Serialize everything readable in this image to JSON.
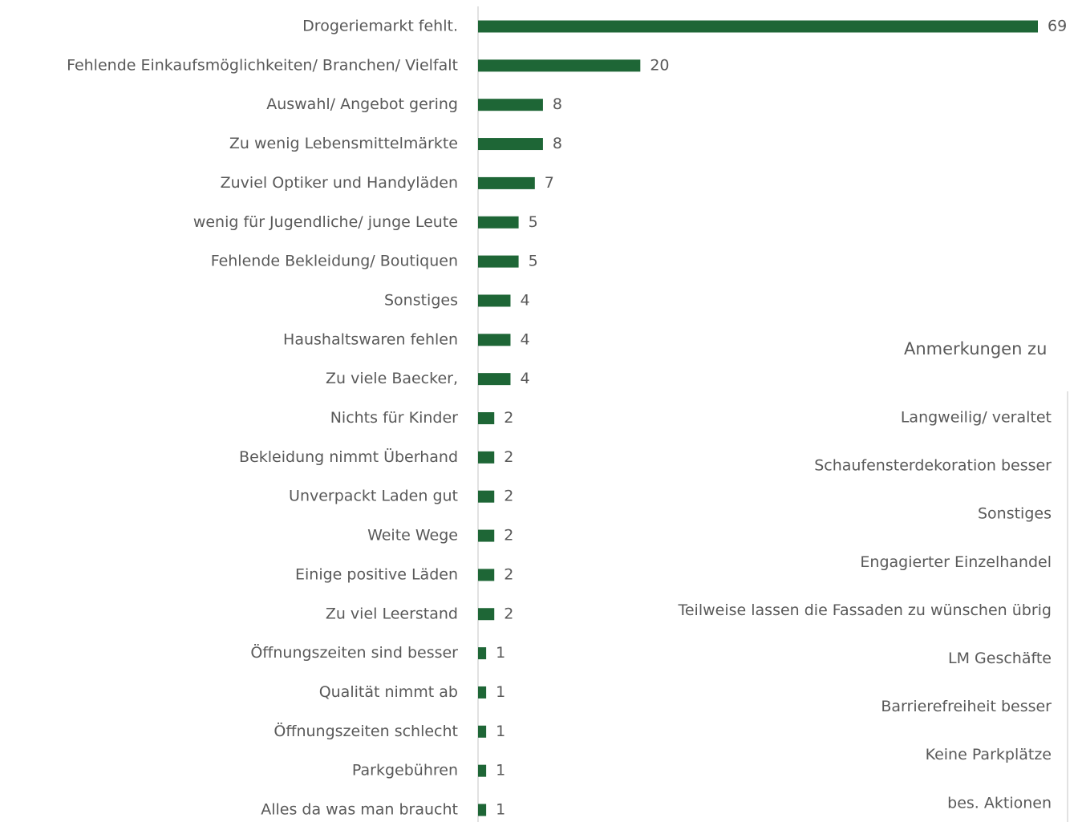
{
  "chart_data": [
    {
      "type": "barh",
      "color": "#1e6636",
      "categories": [
        "Drogeriemarkt fehlt.",
        "Fehlende Einkaufsmöglichkeiten/ Branchen/ Vielfalt",
        "Auswahl/ Angebot gering",
        "Zu wenig Lebensmittelmärkte",
        "Zuviel Optiker und Handyläden",
        "wenig für Jugendliche/ junge Leute",
        "Fehlende Bekleidung/ Boutiquen",
        "Sonstiges",
        "Haushaltswaren fehlen",
        "Zu viele Baecker,",
        "Nichts für Kinder",
        "Bekleidung nimmt Überhand",
        "Unverpackt Laden gut",
        "Weite Wege",
        "Einige positive Läden",
        "Zu viel Leerstand",
        "Öffnungszeiten sind besser",
        "Qualität nimmt ab",
        "Öffnungszeiten schlecht",
        "Parkgebühren",
        "Alles da was man braucht"
      ],
      "values": [
        69,
        20,
        8,
        8,
        7,
        5,
        5,
        4,
        4,
        4,
        2,
        2,
        2,
        2,
        2,
        2,
        1,
        1,
        1,
        1,
        1
      ]
    },
    {
      "type": "barh",
      "title": "Anmerkungen zu",
      "categories": [
        "Langweilig/ veraltet",
        "Schaufensterdekoration besser",
        "Sonstiges",
        "Engagierter Einzelhandel",
        "Teilweise lassen die Fassaden zu wünschen übrig",
        "LM Geschäfte",
        "Barrierefreiheit besser",
        "Keine Parkplätze",
        "bes. Aktionen"
      ]
    }
  ]
}
